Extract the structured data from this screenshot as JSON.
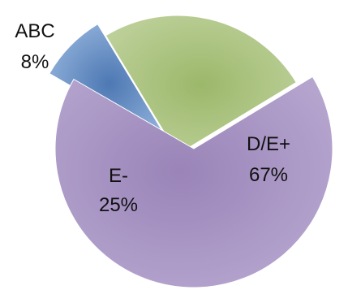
{
  "chart_data": {
    "type": "pie",
    "slices": [
      {
        "name": "ABC",
        "value": 8,
        "value_label": "8%",
        "color": "#6f95c8"
      },
      {
        "name": "E-",
        "value": 25,
        "value_label": "25%",
        "color": "#aac27c"
      },
      {
        "name": "D/E+",
        "value": 67,
        "value_label": "67%",
        "color": "#a995c2"
      }
    ],
    "exploded": true
  }
}
